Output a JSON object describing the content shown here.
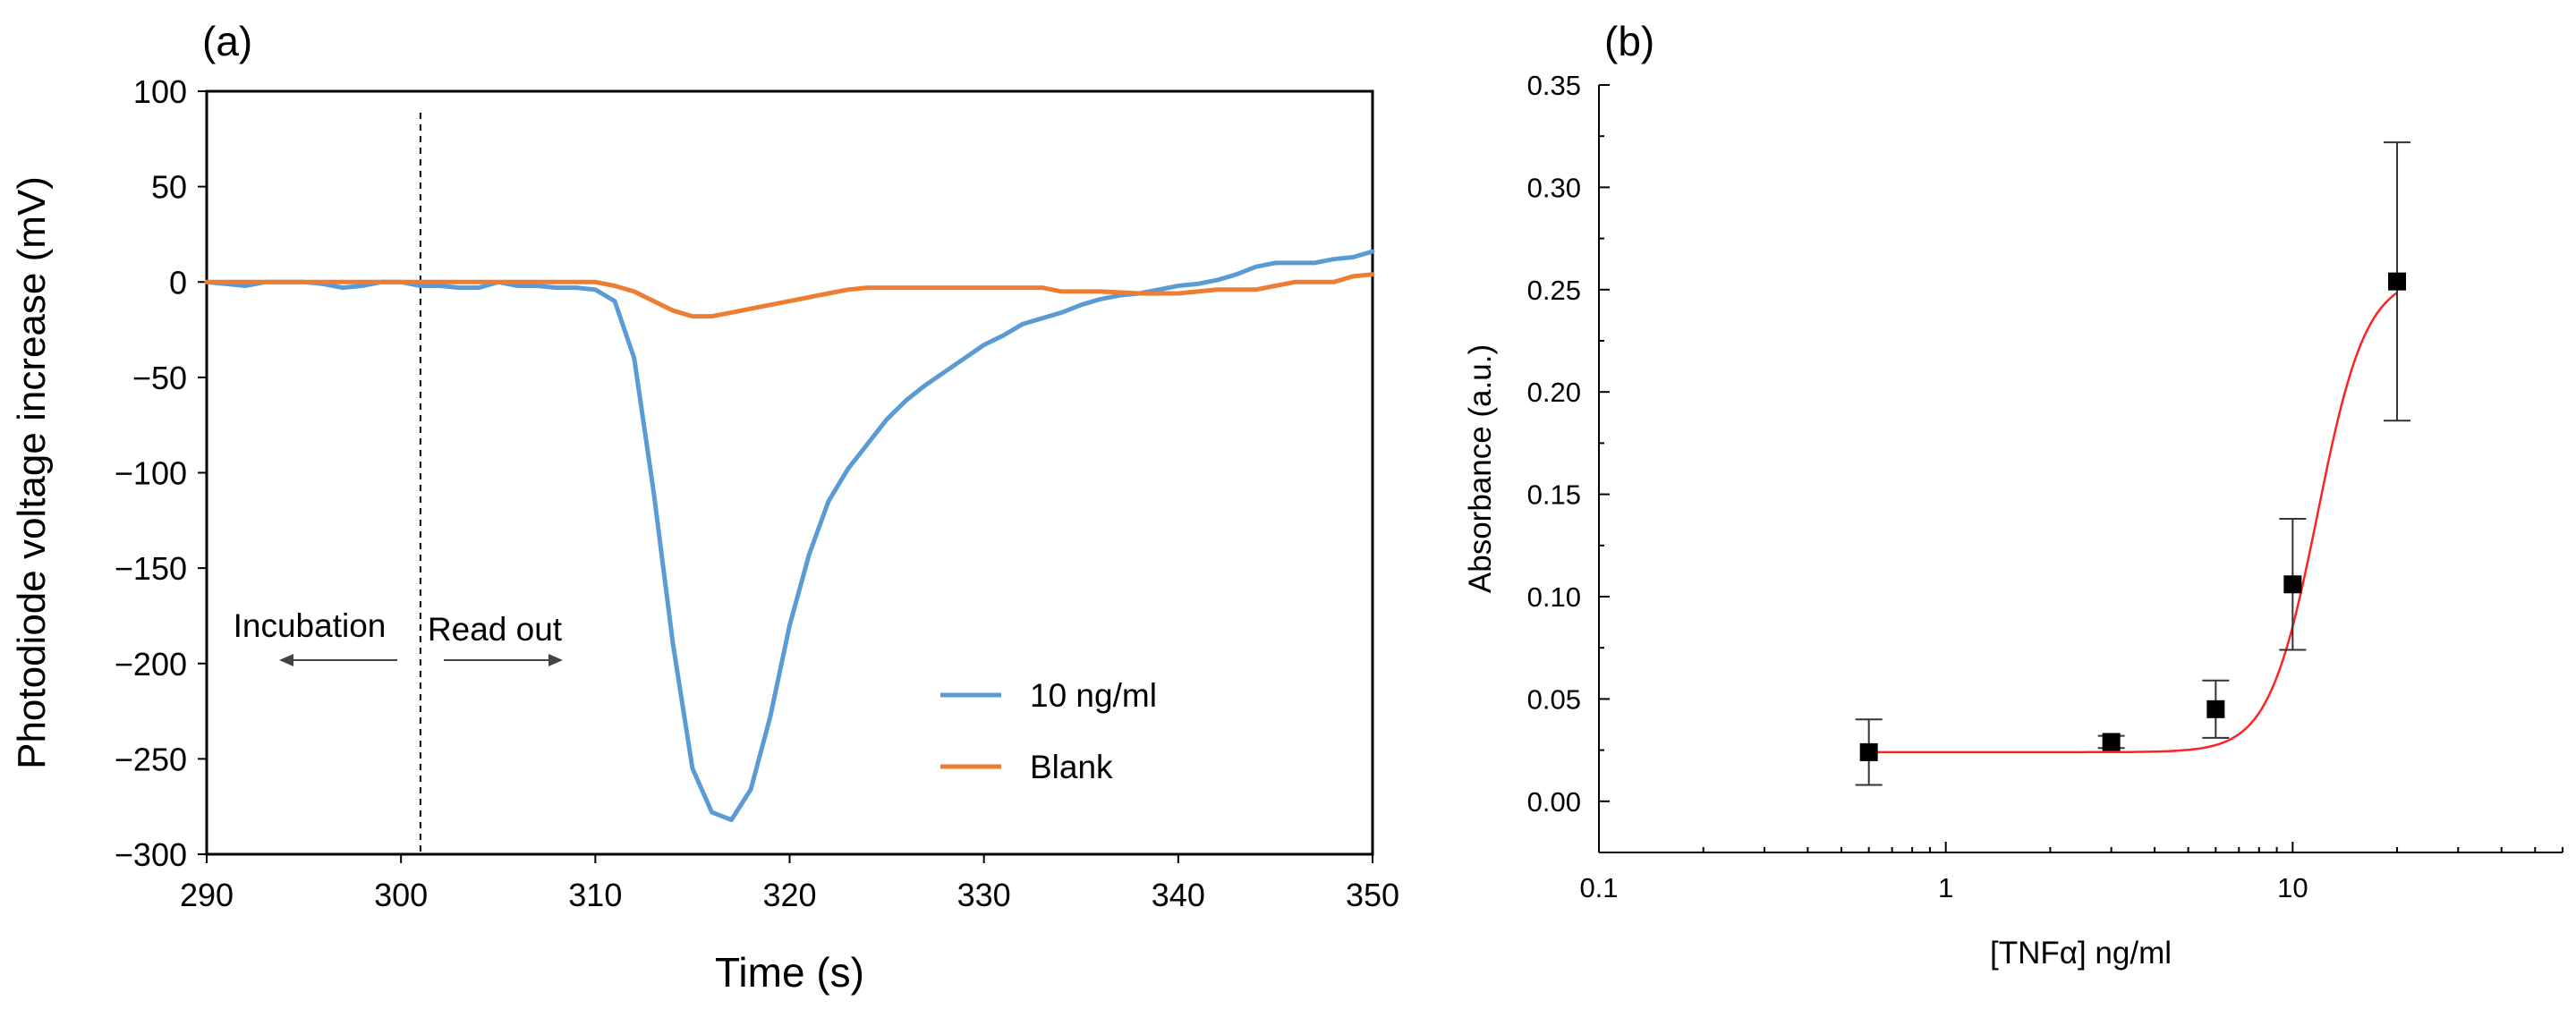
{
  "chart_data": [
    {
      "panel_label": "(a)",
      "type": "line",
      "xlabel": "Time (s)",
      "ylabel": "Photodiode voltage increase (mV)",
      "xlim": [
        290,
        350
      ],
      "ylim": [
        -300,
        100
      ],
      "x_ticks": [
        290,
        300,
        310,
        320,
        330,
        340,
        350
      ],
      "y_ticks": [
        100,
        50,
        0,
        -50,
        -100,
        -150,
        -200,
        -250,
        -300
      ],
      "grid": false,
      "legend_position": "bottom-right",
      "series": [
        {
          "name": "10 ng/ml",
          "color": "#5b9bd5",
          "x": [
            290,
            291,
            292,
            293,
            294,
            295,
            296,
            297,
            298,
            299,
            300,
            301,
            302,
            303,
            304,
            305,
            306,
            307,
            308,
            309,
            310,
            311,
            312,
            313,
            314,
            315,
            316,
            317,
            318,
            319,
            320,
            321,
            322,
            323,
            324,
            325,
            326,
            327,
            328,
            329,
            330,
            331,
            332,
            333,
            334,
            335,
            336,
            337,
            338,
            339,
            340,
            341,
            342,
            343,
            344,
            345,
            346,
            347,
            348,
            349,
            350
          ],
          "y": [
            0,
            -1,
            -2,
            0,
            0,
            0,
            -1,
            -3,
            -2,
            0,
            0,
            -2,
            -2,
            -3,
            -3,
            0,
            -2,
            -2,
            -3,
            -3,
            -4,
            -10,
            -40,
            -110,
            -190,
            -255,
            -278,
            -282,
            -266,
            -228,
            -180,
            -143,
            -115,
            -98,
            -85,
            -72,
            -62,
            -54,
            -47,
            -40,
            -33,
            -28,
            -22,
            -19,
            -16,
            -12,
            -9,
            -7,
            -6,
            -4,
            -2,
            -1,
            1,
            4,
            8,
            10,
            10,
            10,
            12,
            13,
            16
          ]
        },
        {
          "name": "Blank",
          "color": "#ed7d31",
          "x": [
            290,
            292,
            294,
            296,
            298,
            300,
            302,
            304,
            306,
            308,
            309,
            310,
            311,
            312,
            313,
            314,
            315,
            316,
            317,
            318,
            319,
            320,
            321,
            322,
            323,
            324,
            326,
            328,
            330,
            332,
            333,
            334,
            336,
            338,
            340,
            341,
            342,
            344,
            345,
            346,
            348,
            349,
            350
          ],
          "y": [
            0,
            0,
            0,
            0,
            0,
            0,
            0,
            0,
            0,
            0,
            0,
            0,
            -2,
            -5,
            -10,
            -15,
            -18,
            -18,
            -16,
            -14,
            -12,
            -10,
            -8,
            -6,
            -4,
            -3,
            -3,
            -3,
            -3,
            -3,
            -3,
            -5,
            -5,
            -6,
            -6,
            -5,
            -4,
            -4,
            -2,
            0,
            0,
            3,
            4
          ]
        }
      ],
      "annotations": {
        "divider_x": 301,
        "incubation_label": "Incubation",
        "readout_label": "Read out"
      }
    },
    {
      "panel_label": "(b)",
      "type": "scatter",
      "xscale": "log",
      "xlabel": "[TNFα] ng/ml",
      "ylabel": "Absorbance (a.u.)",
      "xlim": [
        0.1,
        60
      ],
      "ylim": [
        -0.025,
        0.35
      ],
      "x_ticks": [
        0.1,
        1,
        10
      ],
      "x_tick_labels": [
        "0.1",
        "1",
        "10"
      ],
      "y_ticks": [
        0,
        0.05,
        0.1,
        0.15,
        0.2,
        0.25,
        0.3,
        0.35
      ],
      "y_tick_labels": [
        "0.00",
        "0.05",
        "0.10",
        "0.15",
        "0.20",
        "0.25",
        "0.30",
        "0.35"
      ],
      "grid": false,
      "points": [
        {
          "x": 0.6,
          "y": 0.024,
          "err": 0.016
        },
        {
          "x": 3,
          "y": 0.029,
          "err": 0.003
        },
        {
          "x": 6,
          "y": 0.045,
          "err": 0.014
        },
        {
          "x": 10,
          "y": 0.106,
          "err": 0.032
        },
        {
          "x": 20,
          "y": 0.254,
          "err": 0.068
        }
      ],
      "fit": {
        "model": "4PL",
        "bottom": 0.024,
        "top": 0.257,
        "ec50": 11.8,
        "hill": 6.2,
        "x_range": [
          0.6,
          20
        ],
        "color": "#ff2222"
      },
      "marker_color": "#000000"
    }
  ]
}
